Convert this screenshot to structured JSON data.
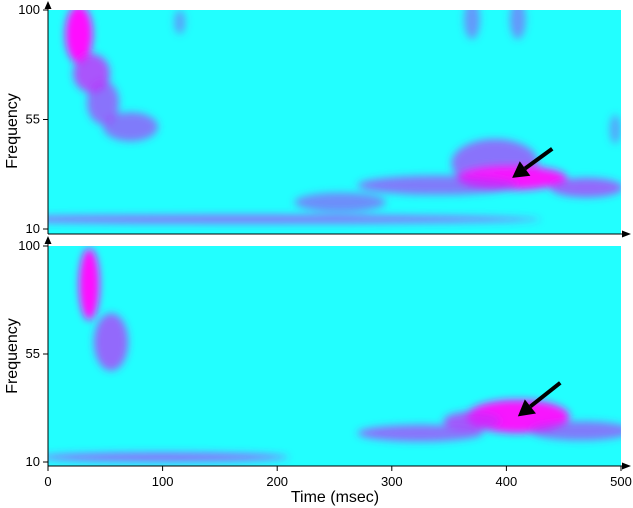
{
  "chart_data": [
    {
      "type": "heatmap",
      "xlabel": "",
      "ylabel": "Frequency",
      "xlim": [
        0,
        500
      ],
      "ylim": [
        10,
        100
      ],
      "yticks": [
        10,
        55,
        100
      ],
      "ytick_labels": [
        "10",
        "55",
        "100"
      ],
      "xtick_labels_shown": false,
      "colormap": {
        "low": "#22ffff",
        "mid": "#6b5bf2",
        "high": "#ff10ff"
      },
      "blobs": [
        {
          "t": 27,
          "f": 90,
          "dt": 12,
          "df": 12,
          "level": 1.0
        },
        {
          "t": 38,
          "f": 74,
          "dt": 16,
          "df": 8,
          "level": 0.65
        },
        {
          "t": 48,
          "f": 62,
          "dt": 14,
          "df": 9,
          "level": 0.5
        },
        {
          "t": 72,
          "f": 52,
          "dt": 24,
          "df": 6,
          "level": 0.45
        },
        {
          "t": 115,
          "f": 95,
          "dt": 5,
          "df": 5,
          "level": 0.22
        },
        {
          "t": 370,
          "f": 96,
          "dt": 7,
          "df": 8,
          "level": 0.3
        },
        {
          "t": 410,
          "f": 96,
          "dt": 7,
          "df": 8,
          "level": 0.3
        },
        {
          "t": 495,
          "f": 51,
          "dt": 5,
          "df": 6,
          "level": 0.2
        },
        {
          "t": 390,
          "f": 37,
          "dt": 38,
          "df": 10,
          "level": 0.5
        },
        {
          "t": 405,
          "f": 31,
          "dt": 48,
          "df": 5,
          "level": 0.95
        },
        {
          "t": 470,
          "f": 27,
          "dt": 32,
          "df": 4,
          "level": 0.55
        },
        {
          "t": 340,
          "f": 28,
          "dt": 70,
          "df": 4,
          "level": 0.45
        },
        {
          "t": 255,
          "f": 21,
          "dt": 40,
          "df": 4,
          "level": 0.35
        },
        {
          "t": 170,
          "f": 14,
          "dt": 260,
          "df": 1.8,
          "level": 0.5
        }
      ],
      "annotation_arrow": {
        "tail": [
          440,
          43
        ],
        "head": [
          405,
          31
        ]
      }
    },
    {
      "type": "heatmap",
      "xlabel": "Time (msec)",
      "ylabel": "Frequency",
      "xlim": [
        0,
        500
      ],
      "ylim": [
        10,
        100
      ],
      "xticks": [
        0,
        100,
        200,
        300,
        400,
        500
      ],
      "xtick_labels": [
        "0",
        "100",
        "200",
        "300",
        "400",
        "500"
      ],
      "yticks": [
        10,
        55,
        100
      ],
      "ytick_labels": [
        "10",
        "55",
        "100"
      ],
      "colormap": {
        "low": "#22ffff",
        "mid": "#6b5bf2",
        "high": "#ff10ff"
      },
      "blobs": [
        {
          "t": 36,
          "f": 84,
          "dt": 9,
          "df": 15,
          "level": 1.0
        },
        {
          "t": 55,
          "f": 60,
          "dt": 15,
          "df": 12,
          "level": 0.55
        },
        {
          "t": 410,
          "f": 29,
          "dt": 45,
          "df": 7,
          "level": 0.95
        },
        {
          "t": 370,
          "f": 27,
          "dt": 25,
          "df": 4,
          "level": 0.6
        },
        {
          "t": 325,
          "f": 22,
          "dt": 55,
          "df": 3.5,
          "level": 0.5
        },
        {
          "t": 465,
          "f": 23,
          "dt": 45,
          "df": 4,
          "level": 0.45
        },
        {
          "t": 100,
          "f": 12,
          "dt": 110,
          "df": 2,
          "level": 0.5
        }
      ],
      "annotation_arrow": {
        "tail": [
          447,
          43
        ],
        "head": [
          410,
          29
        ]
      }
    }
  ]
}
